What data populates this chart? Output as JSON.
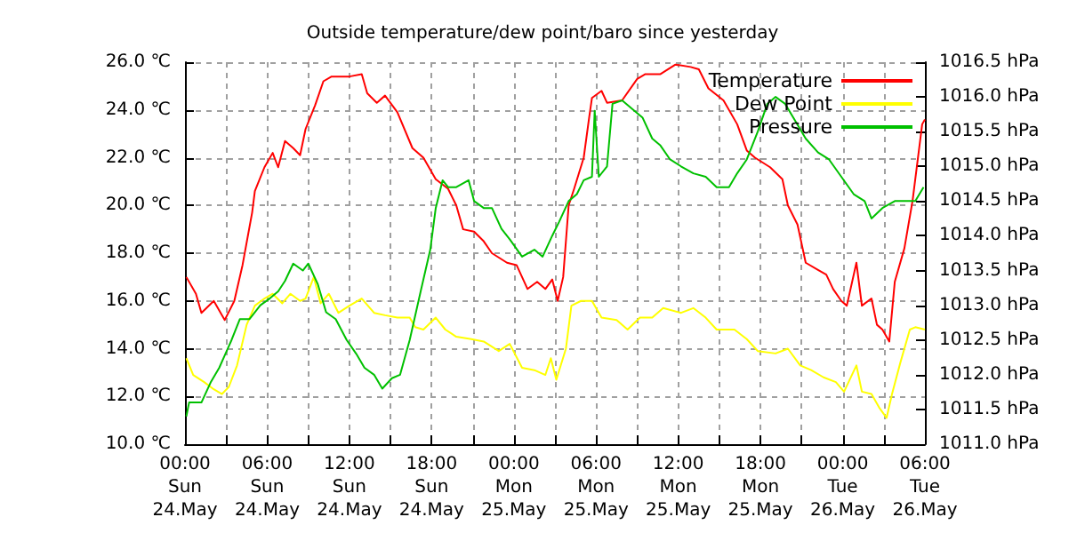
{
  "chart_data": {
    "type": "line",
    "title": "Outside temperature/dew point/baro since yesterday",
    "xlim": [
      "--05-24T00:00",
      "--05-26T06:00"
    ],
    "xticks": [
      {
        "value": "--05-24T00:00",
        "label": "00:00\nSun\n24.May"
      },
      {
        "value": "--05-24T03:00",
        "label": null
      },
      {
        "value": "--05-24T06:00",
        "label": "06:00\nSun\n24.May"
      },
      {
        "value": "--05-24T09:00",
        "label": null
      },
      {
        "value": "--05-24T12:00",
        "label": "12:00\nSun\n24.May"
      },
      {
        "value": "--05-24T15:00",
        "label": null
      },
      {
        "value": "--05-24T18:00",
        "label": "18:00\nSun\n24.May"
      },
      {
        "value": "--05-24T21:00",
        "label": null
      },
      {
        "value": "--05-25T00:00",
        "label": "00:00\nMon\n25.May"
      },
      {
        "value": "--05-25T03:00",
        "label": null
      },
      {
        "value": "--05-25T06:00",
        "label": "06:00\nMon\n25.May"
      },
      {
        "value": "--05-25T09:00",
        "label": null
      },
      {
        "value": "--05-25T12:00",
        "label": "12:00\nMon\n25.May"
      },
      {
        "value": "--05-25T15:00",
        "label": null
      },
      {
        "value": "--05-25T18:00",
        "label": "18:00\nMon\n25.May"
      },
      {
        "value": "--05-25T21:00",
        "label": null
      },
      {
        "value": "--05-26T00:00",
        "label": "00:00\nTue\n26.May"
      },
      {
        "value": "--05-26T03:00",
        "label": null
      },
      {
        "value": "--05-26T06:00",
        "label": "06:00\nTue\n26.May"
      }
    ],
    "ylim": [
      10,
      26
    ],
    "yticks": [
      {
        "value": 10,
        "label": "10.0 ℃"
      },
      {
        "value": 12,
        "label": "12.0 ℃"
      },
      {
        "value": 14,
        "label": "14.0 ℃"
      },
      {
        "value": 16,
        "label": "16.0 ℃"
      },
      {
        "value": 18,
        "label": "18.0 ℃"
      },
      {
        "value": 20,
        "label": "20.0 ℃"
      },
      {
        "value": 22,
        "label": "22.0 ℃"
      },
      {
        "value": 24,
        "label": "24.0 ℃"
      },
      {
        "value": 26,
        "label": "26.0 ℃"
      }
    ],
    "y2lim": [
      1011,
      1016.5
    ],
    "y2ticks": [
      {
        "value": 1011,
        "label": "1011.0 hPa"
      },
      {
        "value": 1011.5,
        "label": "1011.5 hPa"
      },
      {
        "value": 1012,
        "label": "1012.0 hPa"
      },
      {
        "value": 1012.5,
        "label": "1012.5 hPa"
      },
      {
        "value": 1013,
        "label": "1013.0 hPa"
      },
      {
        "value": 1013.5,
        "label": "1013.5 hPa"
      },
      {
        "value": 1014,
        "label": "1014.0 hPa"
      },
      {
        "value": 1014.5,
        "label": "1014.5 hPa"
      },
      {
        "value": 1015,
        "label": "1015.0 hPa"
      },
      {
        "value": 1015.5,
        "label": "1015.5 hPa"
      },
      {
        "value": 1016,
        "label": "1016.0 hPa"
      },
      {
        "value": 1016.5,
        "label": "1016.5 hPa"
      }
    ],
    "grid": true,
    "legend": "top right",
    "marker": "none",
    "line_style": "solid",
    "series": [
      {
        "name": "Temperature",
        "color": "#ff0000",
        "x": [
          "--05-24T00:06",
          "--05-24T00:48",
          "--05-24T01:12",
          "--05-24T02:06",
          "--05-24T02:54",
          "--05-24T03:36",
          "--05-24T04:12",
          "--05-24T04:54",
          "--05-24T05:06",
          "--05-24T05:48",
          "--05-24T06:24",
          "--05-24T06:48",
          "--05-24T07:18",
          "--05-24T07:54",
          "--05-24T08:24",
          "--05-24T08:48",
          "--05-24T09:30",
          "--05-24T10:06",
          "--05-24T10:42",
          "--05-24T12:00",
          "--05-24T12:54",
          "--05-24T13:18",
          "--05-24T14:00",
          "--05-24T14:36",
          "--05-24T15:30",
          "--05-24T16:36",
          "--05-24T17:24",
          "--05-24T18:18",
          "--05-24T19:12",
          "--05-24T19:48",
          "--05-24T20:18",
          "--05-24T21:06",
          "--05-24T21:48",
          "--05-24T22:24",
          "--05-24T23:30",
          "--05-25T00:12",
          "--05-25T00:36",
          "--05-25T01:00",
          "--05-25T01:42",
          "--05-25T02:18",
          "--05-25T02:48",
          "--05-25T03:12",
          "--05-25T03:36",
          "--05-25T04:00",
          "--05-25T04:24",
          "--05-25T05:06",
          "--05-25T05:30",
          "--05-25T05:42",
          "--05-25T06:24",
          "--05-25T06:48",
          "--05-25T07:54",
          "--05-25T09:00",
          "--05-25T09:36",
          "--05-25T10:42",
          "--05-25T11:48",
          "--05-25T12:54",
          "--05-25T13:30",
          "--05-25T14:12",
          "--05-25T15:18",
          "--05-25T16:18",
          "--05-25T17:00",
          "--05-25T17:36",
          "--05-25T18:42",
          "--05-25T19:36",
          "--05-25T20:00",
          "--05-25T20:42",
          "--05-25T21:18",
          "--05-25T22:12",
          "--05-25T22:48",
          "--05-25T23:18",
          "--05-25T23:54",
          "--05-26T00:18",
          "--05-26T01:00",
          "--05-26T01:24",
          "--05-26T02:06",
          "--05-26T02:30",
          "--05-26T02:54",
          "--05-26T03:24",
          "--05-26T03:48",
          "--05-26T04:30",
          "--05-26T05:06",
          "--05-26T05:48",
          "--05-26T06:00"
        ],
        "values": [
          17.0,
          16.3,
          15.5,
          16.0,
          15.2,
          16.0,
          17.5,
          19.7,
          20.6,
          21.6,
          22.2,
          21.6,
          22.7,
          22.4,
          22.1,
          23.2,
          24.2,
          25.2,
          25.4,
          25.4,
          25.5,
          24.7,
          24.3,
          24.6,
          23.9,
          22.4,
          22.0,
          21.1,
          20.7,
          20.0,
          19.0,
          18.9,
          18.5,
          18.0,
          17.6,
          17.5,
          17.0,
          16.5,
          16.8,
          16.5,
          16.9,
          16.0,
          17.0,
          20.0,
          20.7,
          22.0,
          23.7,
          24.5,
          24.8,
          24.3,
          24.4,
          25.3,
          25.5,
          25.5,
          25.9,
          25.8,
          25.7,
          24.9,
          24.4,
          23.4,
          22.3,
          22.0,
          21.6,
          21.1,
          20.0,
          19.2,
          17.6,
          17.3,
          17.1,
          16.5,
          16.0,
          15.8,
          17.6,
          15.8,
          16.1,
          15.0,
          14.8,
          14.3,
          16.8,
          18.2,
          20.2,
          23.4,
          23.6
        ]
      },
      {
        "name": "Dew Point",
        "color": "#ffff00",
        "x": [
          "--05-24T00:06",
          "--05-24T00:36",
          "--05-24T01:24",
          "--05-24T02:06",
          "--05-24T02:42",
          "--05-24T03:12",
          "--05-24T03:48",
          "--05-24T04:30",
          "--05-24T05:06",
          "--05-24T05:48",
          "--05-24T06:24",
          "--05-24T07:06",
          "--05-24T07:42",
          "--05-24T08:24",
          "--05-24T08:48",
          "--05-24T09:24",
          "--05-24T09:54",
          "--05-24T10:30",
          "--05-24T11:12",
          "--05-24T12:00",
          "--05-24T12:54",
          "--05-24T13:48",
          "--05-24T14:36",
          "--05-24T15:30",
          "--05-24T16:24",
          "--05-24T16:48",
          "--05-24T17:24",
          "--05-24T18:18",
          "--05-24T19:00",
          "--05-24T19:48",
          "--05-24T20:54",
          "--05-24T21:48",
          "--05-24T22:54",
          "--05-24T23:42",
          "--05-25T00:36",
          "--05-25T01:30",
          "--05-25T02:18",
          "--05-25T02:42",
          "--05-25T03:06",
          "--05-25T03:48",
          "--05-25T04:12",
          "--05-25T04:54",
          "--05-25T05:42",
          "--05-25T06:24",
          "--05-25T07:30",
          "--05-25T08:18",
          "--05-25T09:12",
          "--05-25T10:06",
          "--05-25T10:54",
          "--05-25T12:12",
          "--05-25T13:06",
          "--05-25T14:00",
          "--05-25T14:48",
          "--05-25T16:06",
          "--05-25T17:00",
          "--05-25T17:48",
          "--05-25T19:06",
          "--05-25T20:00",
          "--05-25T20:54",
          "--05-25T21:42",
          "--05-25T22:36",
          "--05-25T23:30",
          "--05-26T00:06",
          "--05-26T01:00",
          "--05-26T01:24",
          "--05-26T02:06",
          "--05-26T02:42",
          "--05-26T03:12",
          "--05-26T03:36",
          "--05-26T04:12",
          "--05-26T04:54",
          "--05-26T05:18",
          "--05-26T06:00"
        ],
        "values": [
          13.6,
          12.9,
          12.6,
          12.3,
          12.1,
          12.4,
          13.3,
          15.0,
          15.8,
          16.1,
          16.3,
          15.9,
          16.3,
          16.0,
          16.1,
          17.0,
          15.9,
          16.3,
          15.5,
          15.8,
          16.1,
          15.5,
          15.4,
          15.3,
          15.3,
          14.9,
          14.8,
          15.3,
          14.8,
          14.5,
          14.4,
          14.3,
          13.9,
          14.2,
          13.2,
          13.1,
          12.9,
          13.6,
          12.7,
          14.0,
          15.8,
          16.0,
          16.0,
          15.3,
          15.2,
          14.8,
          15.3,
          15.3,
          15.7,
          15.5,
          15.7,
          15.3,
          14.8,
          14.8,
          14.4,
          13.9,
          13.8,
          14.0,
          13.3,
          13.1,
          12.8,
          12.6,
          12.2,
          13.3,
          12.2,
          12.1,
          11.5,
          11.1,
          12.1,
          13.4,
          14.8,
          14.9,
          14.8
        ]
      },
      {
        "name": "Pressure",
        "color": "#00c000",
        "axis": "y2",
        "x": [
          "--05-24T00:06",
          "--05-24T00:18",
          "--05-24T01:12",
          "--05-24T01:54",
          "--05-24T02:30",
          "--05-24T03:24",
          "--05-24T04:00",
          "--05-24T04:42",
          "--05-24T05:30",
          "--05-24T06:12",
          "--05-24T06:48",
          "--05-24T07:18",
          "--05-24T07:54",
          "--05-24T08:36",
          "--05-24T09:00",
          "--05-24T09:42",
          "--05-24T10:18",
          "--05-24T11:00",
          "--05-24T11:48",
          "--05-24T12:30",
          "--05-24T13:06",
          "--05-24T13:48",
          "--05-24T14:24",
          "--05-24T15:06",
          "--05-24T15:42",
          "--05-24T16:24",
          "--05-24T17:12",
          "--05-24T17:54",
          "--05-24T18:18",
          "--05-24T18:48",
          "--05-24T19:12",
          "--05-24T19:48",
          "--05-24T20:42",
          "--05-24T21:06",
          "--05-24T21:48",
          "--05-24T22:24",
          "--05-24T23:06",
          "--05-24T23:42",
          "--05-25T00:36",
          "--05-25T01:30",
          "--05-25T02:06",
          "--05-25T02:48",
          "--05-25T03:18",
          "--05-25T04:00",
          "--05-25T04:36",
          "--05-25T05:06",
          "--05-25T05:42",
          "--05-25T05:54",
          "--05-25T06:12",
          "--05-25T06:48",
          "--05-25T07:12",
          "--05-25T07:54",
          "--05-25T08:48",
          "--05-25T09:24",
          "--05-25T10:06",
          "--05-25T10:42",
          "--05-25T11:24",
          "--05-25T12:12",
          "--05-25T13:06",
          "--05-25T14:00",
          "--05-25T14:48",
          "--05-25T15:42",
          "--05-25T16:18",
          "--05-25T17:00",
          "--05-25T17:48",
          "--05-25T18:30",
          "--05-25T19:06",
          "--05-25T19:48",
          "--05-25T20:24",
          "--05-25T21:18",
          "--05-25T22:12",
          "--05-25T23:00",
          "--05-25T23:54",
          "--05-26T00:48",
          "--05-26T01:36",
          "--05-26T02:06",
          "--05-26T02:54",
          "--05-26T03:48",
          "--05-26T04:42",
          "--05-26T05:18",
          "--05-26T05:54"
        ],
        "values": [
          1011.4,
          1011.6,
          1011.6,
          1011.9,
          1012.1,
          1012.5,
          1012.8,
          1012.8,
          1013.0,
          1013.1,
          1013.2,
          1013.35,
          1013.6,
          1013.5,
          1013.6,
          1013.3,
          1012.9,
          1012.8,
          1012.5,
          1012.3,
          1012.1,
          1012.0,
          1011.8,
          1011.95,
          1012.0,
          1012.5,
          1013.2,
          1013.8,
          1014.4,
          1014.8,
          1014.7,
          1014.7,
          1014.8,
          1014.5,
          1014.4,
          1014.4,
          1014.1,
          1013.95,
          1013.7,
          1013.8,
          1013.7,
          1014.0,
          1014.2,
          1014.5,
          1014.6,
          1014.8,
          1014.85,
          1015.8,
          1014.85,
          1015.0,
          1015.9,
          1015.95,
          1015.8,
          1015.7,
          1015.4,
          1015.3,
          1015.1,
          1015.0,
          1014.9,
          1014.85,
          1014.7,
          1014.7,
          1014.9,
          1015.1,
          1015.5,
          1015.9,
          1016.0,
          1015.9,
          1015.7,
          1015.4,
          1015.2,
          1015.1,
          1014.85,
          1014.6,
          1014.5,
          1014.25,
          1014.4,
          1014.5,
          1014.5,
          1014.5,
          1014.7
        ]
      }
    ]
  }
}
